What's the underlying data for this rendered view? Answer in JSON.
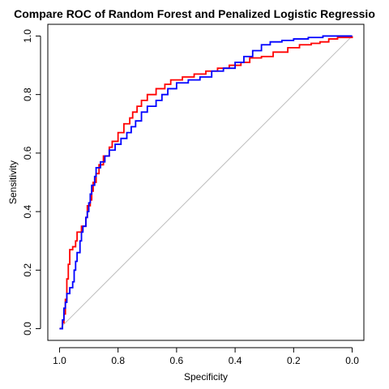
{
  "chart_data": {
    "type": "line",
    "title": "Compare ROC of Random Forest and Penalized Logistic Regressio",
    "xlabel": "Specificity",
    "ylabel": "Sensitivity",
    "x_reversed": true,
    "xlim": [
      1.04,
      -0.04
    ],
    "ylim": [
      -0.04,
      1.04
    ],
    "x_ticks": [
      "1.0",
      "0.8",
      "0.6",
      "0.4",
      "0.2",
      "0.0"
    ],
    "y_ticks": [
      "0.0",
      "0.2",
      "0.4",
      "0.6",
      "0.8",
      "1.0"
    ],
    "grid": false,
    "legend": "none",
    "reference_line": {
      "from": [
        1.0,
        0.0
      ],
      "to": [
        0.0,
        1.0
      ],
      "color": "#bebebe"
    },
    "series": [
      {
        "color": "#ff0000",
        "points": [
          [
            1.0,
            0.0
          ],
          [
            0.99,
            0.02
          ],
          [
            0.985,
            0.05
          ],
          [
            0.98,
            0.1
          ],
          [
            0.975,
            0.17
          ],
          [
            0.97,
            0.22
          ],
          [
            0.965,
            0.27
          ],
          [
            0.955,
            0.28
          ],
          [
            0.945,
            0.3
          ],
          [
            0.94,
            0.33
          ],
          [
            0.925,
            0.35
          ],
          [
            0.91,
            0.38
          ],
          [
            0.905,
            0.42
          ],
          [
            0.895,
            0.44
          ],
          [
            0.89,
            0.47
          ],
          [
            0.885,
            0.5
          ],
          [
            0.875,
            0.53
          ],
          [
            0.865,
            0.56
          ],
          [
            0.85,
            0.59
          ],
          [
            0.83,
            0.62
          ],
          [
            0.82,
            0.64
          ],
          [
            0.8,
            0.67
          ],
          [
            0.78,
            0.7
          ],
          [
            0.76,
            0.72
          ],
          [
            0.75,
            0.74
          ],
          [
            0.735,
            0.76
          ],
          [
            0.72,
            0.78
          ],
          [
            0.7,
            0.8
          ],
          [
            0.67,
            0.82
          ],
          [
            0.64,
            0.835
          ],
          [
            0.62,
            0.85
          ],
          [
            0.58,
            0.86
          ],
          [
            0.54,
            0.87
          ],
          [
            0.5,
            0.88
          ],
          [
            0.46,
            0.89
          ],
          [
            0.42,
            0.9
          ],
          [
            0.38,
            0.91
          ],
          [
            0.35,
            0.925
          ],
          [
            0.31,
            0.93
          ],
          [
            0.27,
            0.945
          ],
          [
            0.22,
            0.96
          ],
          [
            0.18,
            0.97
          ],
          [
            0.14,
            0.975
          ],
          [
            0.11,
            0.98
          ],
          [
            0.08,
            0.99
          ],
          [
            0.05,
            0.995
          ],
          [
            0.0,
            1.0
          ]
        ]
      },
      {
        "color": "#0000ff",
        "points": [
          [
            1.0,
            0.0
          ],
          [
            0.99,
            0.03
          ],
          [
            0.985,
            0.07
          ],
          [
            0.98,
            0.09
          ],
          [
            0.975,
            0.12
          ],
          [
            0.965,
            0.14
          ],
          [
            0.955,
            0.16
          ],
          [
            0.95,
            0.2
          ],
          [
            0.945,
            0.23
          ],
          [
            0.94,
            0.26
          ],
          [
            0.93,
            0.3
          ],
          [
            0.925,
            0.33
          ],
          [
            0.92,
            0.35
          ],
          [
            0.91,
            0.38
          ],
          [
            0.905,
            0.4
          ],
          [
            0.9,
            0.43
          ],
          [
            0.895,
            0.46
          ],
          [
            0.89,
            0.49
          ],
          [
            0.88,
            0.52
          ],
          [
            0.875,
            0.55
          ],
          [
            0.86,
            0.57
          ],
          [
            0.845,
            0.59
          ],
          [
            0.83,
            0.61
          ],
          [
            0.81,
            0.63
          ],
          [
            0.79,
            0.65
          ],
          [
            0.77,
            0.67
          ],
          [
            0.755,
            0.69
          ],
          [
            0.74,
            0.71
          ],
          [
            0.72,
            0.74
          ],
          [
            0.7,
            0.76
          ],
          [
            0.67,
            0.78
          ],
          [
            0.65,
            0.8
          ],
          [
            0.63,
            0.82
          ],
          [
            0.6,
            0.84
          ],
          [
            0.56,
            0.85
          ],
          [
            0.52,
            0.86
          ],
          [
            0.48,
            0.88
          ],
          [
            0.44,
            0.89
          ],
          [
            0.4,
            0.91
          ],
          [
            0.37,
            0.93
          ],
          [
            0.34,
            0.95
          ],
          [
            0.31,
            0.97
          ],
          [
            0.28,
            0.98
          ],
          [
            0.24,
            0.985
          ],
          [
            0.2,
            0.99
          ],
          [
            0.15,
            0.995
          ],
          [
            0.1,
            1.0
          ],
          [
            0.0,
            1.0
          ]
        ]
      }
    ]
  }
}
